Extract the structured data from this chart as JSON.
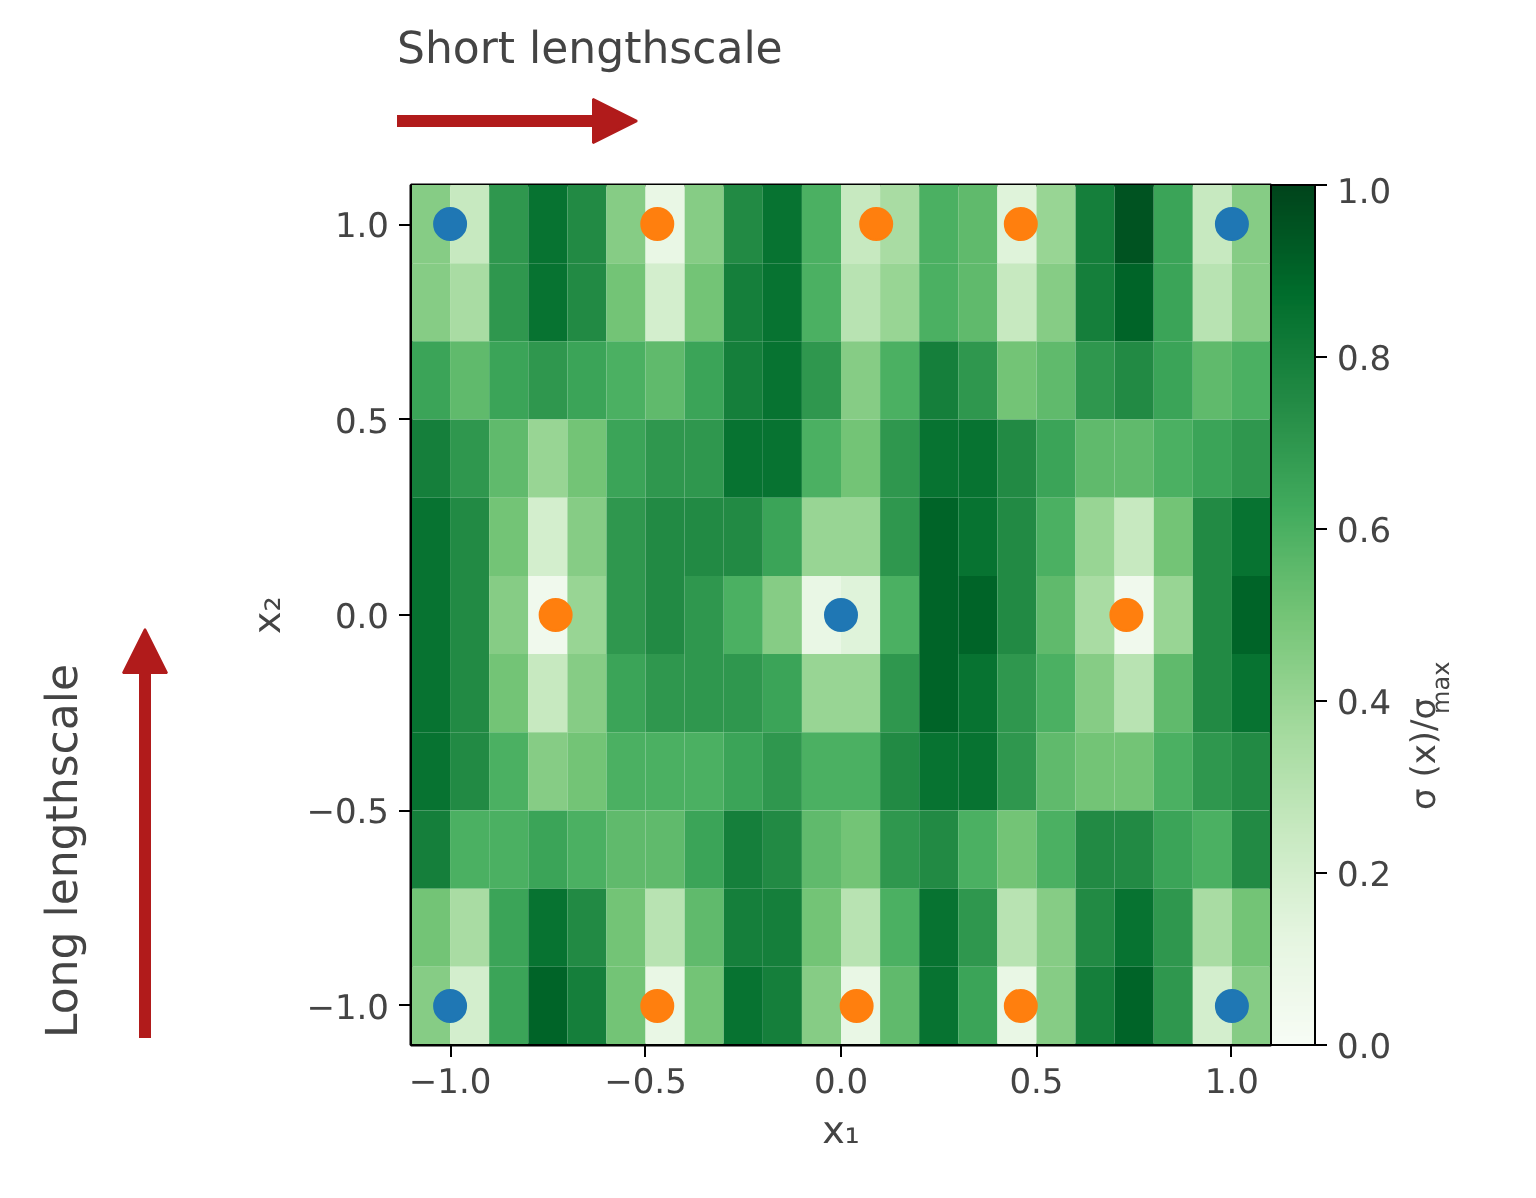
{
  "chart_data": {
    "type": "heatmap",
    "xlabel": "x₁",
    "ylabel": "x₂",
    "clabel": "σ (x)/σ$_{max}$",
    "xlim": [
      -1.1,
      1.1
    ],
    "ylim": [
      -1.1,
      1.1
    ],
    "xticks": [
      {
        "value": -1,
        "label": "−1.0"
      },
      {
        "value": -0.5,
        "label": "−0.5"
      },
      {
        "value": 0,
        "label": "0.0"
      },
      {
        "value": 0.5,
        "label": "0.5"
      },
      {
        "value": 1,
        "label": "1.0"
      }
    ],
    "yticks": [
      {
        "value": -1,
        "label": "−1.0"
      },
      {
        "value": -0.5,
        "label": "−0.5"
      },
      {
        "value": 0,
        "label": "0.0"
      },
      {
        "value": 0.5,
        "label": "0.5"
      },
      {
        "value": 1,
        "label": "1.0"
      }
    ],
    "clim": [
      0,
      1
    ],
    "cticks": [
      {
        "value": 0,
        "label": "0.0"
      },
      {
        "value": 0.2,
        "label": "0.2"
      },
      {
        "value": 0.4,
        "label": "0.4"
      },
      {
        "value": 0.6,
        "label": "0.6"
      },
      {
        "value": 0.8,
        "label": "0.8"
      },
      {
        "value": 1,
        "label": "1.0"
      }
    ],
    "cells": [
      [
        0.45,
        0.25,
        0.7,
        0.85,
        0.75,
        0.45,
        0.1,
        0.45,
        0.75,
        0.85,
        0.6,
        0.25,
        0.35,
        0.6,
        0.55,
        0.15,
        0.4,
        0.8,
        0.95,
        0.65,
        0.25,
        0.45
      ],
      [
        0.45,
        0.35,
        0.7,
        0.85,
        0.75,
        0.5,
        0.2,
        0.5,
        0.8,
        0.85,
        0.6,
        0.3,
        0.4,
        0.6,
        0.55,
        0.25,
        0.45,
        0.8,
        0.9,
        0.65,
        0.3,
        0.45
      ],
      [
        0.65,
        0.55,
        0.65,
        0.7,
        0.65,
        0.6,
        0.55,
        0.65,
        0.8,
        0.85,
        0.7,
        0.45,
        0.6,
        0.8,
        0.7,
        0.5,
        0.55,
        0.7,
        0.75,
        0.65,
        0.55,
        0.6
      ],
      [
        0.8,
        0.7,
        0.55,
        0.4,
        0.5,
        0.65,
        0.7,
        0.7,
        0.85,
        0.85,
        0.6,
        0.5,
        0.7,
        0.85,
        0.85,
        0.75,
        0.65,
        0.55,
        0.55,
        0.6,
        0.65,
        0.7
      ],
      [
        0.85,
        0.75,
        0.5,
        0.2,
        0.45,
        0.7,
        0.75,
        0.75,
        0.75,
        0.65,
        0.4,
        0.4,
        0.7,
        0.9,
        0.85,
        0.75,
        0.6,
        0.4,
        0.25,
        0.5,
        0.75,
        0.85
      ],
      [
        0.85,
        0.75,
        0.45,
        0.05,
        0.4,
        0.7,
        0.75,
        0.7,
        0.6,
        0.45,
        0.1,
        0.15,
        0.6,
        0.9,
        0.9,
        0.75,
        0.55,
        0.35,
        0.05,
        0.4,
        0.75,
        0.9
      ],
      [
        0.85,
        0.75,
        0.5,
        0.25,
        0.45,
        0.65,
        0.7,
        0.7,
        0.7,
        0.65,
        0.4,
        0.4,
        0.7,
        0.9,
        0.85,
        0.7,
        0.6,
        0.45,
        0.3,
        0.55,
        0.75,
        0.85
      ],
      [
        0.85,
        0.75,
        0.6,
        0.45,
        0.5,
        0.6,
        0.6,
        0.6,
        0.65,
        0.7,
        0.6,
        0.6,
        0.75,
        0.85,
        0.85,
        0.7,
        0.55,
        0.5,
        0.5,
        0.6,
        0.7,
        0.75
      ],
      [
        0.8,
        0.6,
        0.6,
        0.65,
        0.6,
        0.55,
        0.55,
        0.65,
        0.8,
        0.75,
        0.55,
        0.5,
        0.7,
        0.75,
        0.6,
        0.5,
        0.6,
        0.75,
        0.75,
        0.65,
        0.6,
        0.75
      ],
      [
        0.5,
        0.35,
        0.65,
        0.85,
        0.75,
        0.5,
        0.3,
        0.55,
        0.8,
        0.8,
        0.5,
        0.3,
        0.6,
        0.85,
        0.7,
        0.3,
        0.45,
        0.75,
        0.85,
        0.7,
        0.35,
        0.5
      ],
      [
        0.45,
        0.2,
        0.65,
        0.9,
        0.8,
        0.5,
        0.1,
        0.5,
        0.85,
        0.8,
        0.45,
        0.1,
        0.55,
        0.85,
        0.65,
        0.1,
        0.45,
        0.8,
        0.9,
        0.7,
        0.2,
        0.45
      ]
    ],
    "series": [
      {
        "type": "scatter",
        "color": "#1f77b4",
        "marker": "circle",
        "x": [
          -1,
          1,
          0,
          -1,
          1
        ],
        "values": [
          1,
          1,
          0,
          -1,
          -1
        ]
      },
      {
        "type": "scatter",
        "color": "#ff7f0e",
        "marker": "circle",
        "x": [
          -0.47,
          0.09,
          0.46,
          -0.73,
          0.73,
          -0.47,
          0.04,
          0.46
        ],
        "values": [
          1,
          1,
          1,
          0,
          0,
          -1,
          -1,
          -1
        ]
      }
    ],
    "annotations": [
      "Short lengthscale",
      "Long lengthscale"
    ],
    "grid": false
  }
}
